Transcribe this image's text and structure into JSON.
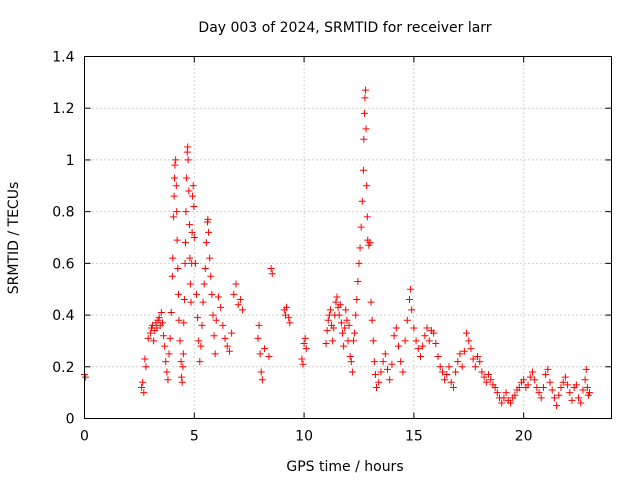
{
  "chart_data": {
    "type": "scatter",
    "title": "Day 003 of 2024, SRMTID for receiver larr",
    "xlabel": "GPS time / hours",
    "ylabel": "SRMTID / TECUs",
    "xlim": [
      0,
      24
    ],
    "ylim": [
      0,
      1.4
    ],
    "xticks": [
      0,
      5,
      10,
      15,
      20
    ],
    "xtick_labels": [
      "0",
      "5",
      "10",
      "15",
      "20"
    ],
    "yticks": [
      0,
      0.2,
      0.4,
      0.6,
      0.8,
      1.0,
      1.2,
      1.4
    ],
    "ytick_labels": [
      "0",
      "0.2",
      "0.4",
      "0.6",
      "0.8",
      "1",
      "1.2",
      "1.4"
    ],
    "grid": true,
    "marker": "+",
    "series": [
      {
        "name": "SRMTID",
        "color": "#ff0000",
        "points": [
          [
            0.0,
            0.17
          ],
          [
            0.05,
            0.16
          ],
          [
            2.6,
            0.12
          ],
          [
            2.65,
            0.14
          ],
          [
            2.7,
            0.1
          ],
          [
            2.75,
            0.23
          ],
          [
            2.8,
            0.2
          ],
          [
            2.9,
            0.31
          ],
          [
            3.0,
            0.33
          ],
          [
            3.05,
            0.35
          ],
          [
            3.1,
            0.36
          ],
          [
            3.15,
            0.3
          ],
          [
            3.2,
            0.34
          ],
          [
            3.25,
            0.37
          ],
          [
            3.3,
            0.35
          ],
          [
            3.35,
            0.38
          ],
          [
            3.4,
            0.39
          ],
          [
            3.45,
            0.36
          ],
          [
            3.5,
            0.41
          ],
          [
            3.55,
            0.37
          ],
          [
            3.6,
            0.32
          ],
          [
            3.65,
            0.28
          ],
          [
            3.7,
            0.22
          ],
          [
            3.75,
            0.18
          ],
          [
            3.8,
            0.15
          ],
          [
            3.85,
            0.25
          ],
          [
            3.9,
            0.31
          ],
          [
            3.95,
            0.41
          ],
          [
            4.0,
            0.55
          ],
          [
            4.02,
            0.62
          ],
          [
            4.05,
            0.78
          ],
          [
            4.08,
            0.86
          ],
          [
            4.1,
            0.93
          ],
          [
            4.12,
            0.98
          ],
          [
            4.15,
            1.0
          ],
          [
            4.18,
            0.9
          ],
          [
            4.2,
            0.8
          ],
          [
            4.22,
            0.69
          ],
          [
            4.25,
            0.58
          ],
          [
            4.28,
            0.48
          ],
          [
            4.3,
            0.38
          ],
          [
            4.35,
            0.3
          ],
          [
            4.4,
            0.22
          ],
          [
            4.42,
            0.16
          ],
          [
            4.45,
            0.14
          ],
          [
            4.48,
            0.2
          ],
          [
            4.5,
            0.25
          ],
          [
            4.52,
            0.37
          ],
          [
            4.55,
            0.46
          ],
          [
            4.58,
            0.6
          ],
          [
            4.6,
            0.68
          ],
          [
            4.62,
            0.8
          ],
          [
            4.65,
            0.93
          ],
          [
            4.68,
            1.03
          ],
          [
            4.7,
            1.05
          ],
          [
            4.72,
            1.0
          ],
          [
            4.75,
            0.88
          ],
          [
            4.78,
            0.75
          ],
          [
            4.8,
            0.62
          ],
          [
            4.82,
            0.52
          ],
          [
            4.85,
            0.45
          ],
          [
            4.88,
            0.6
          ],
          [
            4.9,
            0.72
          ],
          [
            4.92,
            0.86
          ],
          [
            4.95,
            0.9
          ],
          [
            4.98,
            0.82
          ],
          [
            5.0,
            0.7
          ],
          [
            5.05,
            0.6
          ],
          [
            5.1,
            0.48
          ],
          [
            5.15,
            0.39
          ],
          [
            5.2,
            0.3
          ],
          [
            5.25,
            0.22
          ],
          [
            5.3,
            0.28
          ],
          [
            5.35,
            0.36
          ],
          [
            5.4,
            0.45
          ],
          [
            5.45,
            0.52
          ],
          [
            5.5,
            0.58
          ],
          [
            5.55,
            0.68
          ],
          [
            5.6,
            0.76
          ],
          [
            5.62,
            0.77
          ],
          [
            5.65,
            0.72
          ],
          [
            5.7,
            0.62
          ],
          [
            5.75,
            0.55
          ],
          [
            5.8,
            0.48
          ],
          [
            5.85,
            0.4
          ],
          [
            5.9,
            0.32
          ],
          [
            5.95,
            0.25
          ],
          [
            6.0,
            0.38
          ],
          [
            6.1,
            0.47
          ],
          [
            6.2,
            0.43
          ],
          [
            6.3,
            0.36
          ],
          [
            6.4,
            0.31
          ],
          [
            6.5,
            0.28
          ],
          [
            6.6,
            0.26
          ],
          [
            6.7,
            0.33
          ],
          [
            6.8,
            0.48
          ],
          [
            6.9,
            0.52
          ],
          [
            7.0,
            0.44
          ],
          [
            7.1,
            0.46
          ],
          [
            7.2,
            0.42
          ],
          [
            7.9,
            0.31
          ],
          [
            7.95,
            0.36
          ],
          [
            8.0,
            0.25
          ],
          [
            8.05,
            0.18
          ],
          [
            8.1,
            0.15
          ],
          [
            8.2,
            0.27
          ],
          [
            8.4,
            0.24
          ],
          [
            8.5,
            0.58
          ],
          [
            8.55,
            0.56
          ],
          [
            9.1,
            0.42
          ],
          [
            9.15,
            0.4
          ],
          [
            9.2,
            0.43
          ],
          [
            9.3,
            0.39
          ],
          [
            9.35,
            0.37
          ],
          [
            9.9,
            0.23
          ],
          [
            9.95,
            0.21
          ],
          [
            10.0,
            0.29
          ],
          [
            10.05,
            0.31
          ],
          [
            10.1,
            0.27
          ],
          [
            11.0,
            0.29
          ],
          [
            11.05,
            0.34
          ],
          [
            11.1,
            0.38
          ],
          [
            11.15,
            0.4
          ],
          [
            11.2,
            0.42
          ],
          [
            11.25,
            0.36
          ],
          [
            11.3,
            0.3
          ],
          [
            11.35,
            0.35
          ],
          [
            11.4,
            0.4
          ],
          [
            11.45,
            0.45
          ],
          [
            11.5,
            0.47
          ],
          [
            11.55,
            0.43
          ],
          [
            11.6,
            0.4
          ],
          [
            11.65,
            0.44
          ],
          [
            11.7,
            0.37
          ],
          [
            11.75,
            0.33
          ],
          [
            11.8,
            0.28
          ],
          [
            11.85,
            0.35
          ],
          [
            11.9,
            0.42
          ],
          [
            11.95,
            0.38
          ],
          [
            12.0,
            0.3
          ],
          [
            12.05,
            0.36
          ],
          [
            12.1,
            0.24
          ],
          [
            12.15,
            0.22
          ],
          [
            12.2,
            0.18
          ],
          [
            12.25,
            0.3
          ],
          [
            12.3,
            0.33
          ],
          [
            12.35,
            0.4
          ],
          [
            12.4,
            0.46
          ],
          [
            12.45,
            0.53
          ],
          [
            12.5,
            0.6
          ],
          [
            12.55,
            0.66
          ],
          [
            12.6,
            0.74
          ],
          [
            12.65,
            0.84
          ],
          [
            12.7,
            0.96
          ],
          [
            12.72,
            1.08
          ],
          [
            12.75,
            1.18
          ],
          [
            12.77,
            1.24
          ],
          [
            12.8,
            1.27
          ],
          [
            12.82,
            1.12
          ],
          [
            12.85,
            0.9
          ],
          [
            12.88,
            0.78
          ],
          [
            12.9,
            0.69
          ],
          [
            12.95,
            0.67
          ],
          [
            13.0,
            0.68
          ],
          [
            13.05,
            0.45
          ],
          [
            13.1,
            0.38
          ],
          [
            13.15,
            0.3
          ],
          [
            13.2,
            0.22
          ],
          [
            13.25,
            0.17
          ],
          [
            13.3,
            0.12
          ],
          [
            13.4,
            0.14
          ],
          [
            13.5,
            0.18
          ],
          [
            13.6,
            0.22
          ],
          [
            13.7,
            0.25
          ],
          [
            13.8,
            0.19
          ],
          [
            13.9,
            0.15
          ],
          [
            14.0,
            0.21
          ],
          [
            14.1,
            0.32
          ],
          [
            14.2,
            0.35
          ],
          [
            14.3,
            0.28
          ],
          [
            14.4,
            0.22
          ],
          [
            14.5,
            0.18
          ],
          [
            14.6,
            0.3
          ],
          [
            14.7,
            0.38
          ],
          [
            14.8,
            0.46
          ],
          [
            14.85,
            0.5
          ],
          [
            14.9,
            0.42
          ],
          [
            15.0,
            0.35
          ],
          [
            15.1,
            0.3
          ],
          [
            15.2,
            0.27
          ],
          [
            15.3,
            0.24
          ],
          [
            15.4,
            0.28
          ],
          [
            15.5,
            0.32
          ],
          [
            15.6,
            0.35
          ],
          [
            15.7,
            0.3
          ],
          [
            15.8,
            0.34
          ],
          [
            15.9,
            0.33
          ],
          [
            16.0,
            0.29
          ],
          [
            16.1,
            0.24
          ],
          [
            16.2,
            0.2
          ],
          [
            16.3,
            0.18
          ],
          [
            16.4,
            0.15
          ],
          [
            16.5,
            0.17
          ],
          [
            16.6,
            0.2
          ],
          [
            16.7,
            0.14
          ],
          [
            16.8,
            0.12
          ],
          [
            16.9,
            0.18
          ],
          [
            17.0,
            0.22
          ],
          [
            17.1,
            0.25
          ],
          [
            17.2,
            0.2
          ],
          [
            17.3,
            0.26
          ],
          [
            17.4,
            0.33
          ],
          [
            17.5,
            0.3
          ],
          [
            17.6,
            0.27
          ],
          [
            17.7,
            0.23
          ],
          [
            17.8,
            0.2
          ],
          [
            17.9,
            0.24
          ],
          [
            18.0,
            0.22
          ],
          [
            18.1,
            0.18
          ],
          [
            18.2,
            0.16
          ],
          [
            18.3,
            0.14
          ],
          [
            18.4,
            0.17
          ],
          [
            18.5,
            0.15
          ],
          [
            18.6,
            0.13
          ],
          [
            18.7,
            0.12
          ],
          [
            18.8,
            0.1
          ],
          [
            18.9,
            0.08
          ],
          [
            19.0,
            0.06
          ],
          [
            19.1,
            0.08
          ],
          [
            19.2,
            0.1
          ],
          [
            19.3,
            0.07
          ],
          [
            19.4,
            0.06
          ],
          [
            19.5,
            0.08
          ],
          [
            19.6,
            0.09
          ],
          [
            19.7,
            0.11
          ],
          [
            19.8,
            0.12
          ],
          [
            19.9,
            0.14
          ],
          [
            20.0,
            0.15
          ],
          [
            20.1,
            0.12
          ],
          [
            20.2,
            0.13
          ],
          [
            20.3,
            0.16
          ],
          [
            20.4,
            0.18
          ],
          [
            20.5,
            0.15
          ],
          [
            20.6,
            0.12
          ],
          [
            20.7,
            0.1
          ],
          [
            20.8,
            0.08
          ],
          [
            20.9,
            0.12
          ],
          [
            21.0,
            0.17
          ],
          [
            21.1,
            0.19
          ],
          [
            21.2,
            0.14
          ],
          [
            21.3,
            0.11
          ],
          [
            21.4,
            0.08
          ],
          [
            21.5,
            0.05
          ],
          [
            21.6,
            0.09
          ],
          [
            21.7,
            0.12
          ],
          [
            21.8,
            0.14
          ],
          [
            21.9,
            0.16
          ],
          [
            22.0,
            0.13
          ],
          [
            22.1,
            0.1
          ],
          [
            22.2,
            0.07
          ],
          [
            22.3,
            0.12
          ],
          [
            22.4,
            0.13
          ],
          [
            22.5,
            0.08
          ],
          [
            22.6,
            0.06
          ],
          [
            22.7,
            0.11
          ],
          [
            22.8,
            0.15
          ],
          [
            22.85,
            0.19
          ],
          [
            22.9,
            0.12
          ],
          [
            22.95,
            0.09
          ],
          [
            23.0,
            0.1
          ]
        ]
      }
    ]
  }
}
